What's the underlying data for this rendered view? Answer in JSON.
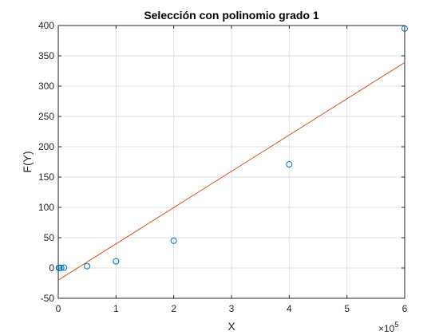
{
  "chart_data": {
    "type": "scatter",
    "title": "Selección con polinomio grado 1",
    "xlabel": "X",
    "ylabel": "F(Y)",
    "x_exponent_label": "×10",
    "x_exponent_power": "5",
    "xlim": [
      0,
      600000
    ],
    "ylim": [
      -50,
      400
    ],
    "x_ticks": [
      0,
      100000,
      200000,
      300000,
      400000,
      500000,
      600000
    ],
    "x_tick_labels": [
      "0",
      "1",
      "2",
      "3",
      "4",
      "5",
      "6"
    ],
    "y_ticks": [
      -50,
      0,
      50,
      100,
      150,
      200,
      250,
      300,
      350,
      400
    ],
    "y_tick_labels": [
      "-50",
      "0",
      "50",
      "100",
      "150",
      "200",
      "250",
      "300",
      "350",
      "400"
    ],
    "grid": true,
    "series": [
      {
        "type": "scatter",
        "marker": "circle-open",
        "color": "#0072bd",
        "x": [
          1000,
          2000,
          5000,
          10000,
          50000,
          100000,
          200000,
          400000,
          600000
        ],
        "y": [
          0.2,
          0.3,
          0.4,
          0.6,
          3,
          11,
          45,
          171,
          395
        ]
      },
      {
        "type": "line",
        "color": "#d95319",
        "x": [
          0,
          600000
        ],
        "y": [
          -20,
          339
        ]
      }
    ]
  }
}
